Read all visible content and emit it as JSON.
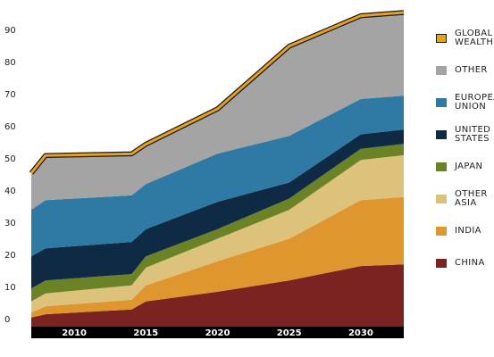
{
  "chart_data": {
    "type": "area",
    "stacked": true,
    "x": [
      2007,
      2008,
      2014,
      2015,
      2020,
      2025,
      2030,
      2033
    ],
    "x_ticks": [
      "2010",
      "2015",
      "2020",
      "2025",
      "2030"
    ],
    "y_ticks": [
      "0",
      "10",
      "20",
      "30",
      "40",
      "50",
      "60",
      "70",
      "80",
      "90"
    ],
    "ylim": [
      -4,
      96
    ],
    "series": [
      {
        "name": "CHINA",
        "color": "#7a2320",
        "values": [
          0.5,
          1.5,
          3,
          5.5,
          8.5,
          12,
          16.5,
          17
        ]
      },
      {
        "name": "INDIA",
        "color": "#e0962e",
        "values": [
          1.5,
          2.5,
          3,
          5,
          9.5,
          13,
          20.5,
          21
        ]
      },
      {
        "name": "OTHER ASIA",
        "color": "#ddc27c",
        "values": [
          3.5,
          4,
          4.5,
          5.5,
          7,
          9,
          12.5,
          13
        ]
      },
      {
        "name": "JAPAN",
        "color": "#6b8326",
        "values": [
          4,
          4,
          3.5,
          3.5,
          3,
          3.5,
          3.5,
          3.5
        ]
      },
      {
        "name": "UNITED STATES",
        "color": "#0f2a44",
        "values": [
          10,
          10,
          10,
          8.5,
          8.5,
          5,
          4.5,
          4.5
        ]
      },
      {
        "name": "EUROPEAN UNION",
        "color": "#2f7aa5",
        "values": [
          14.5,
          15,
          14.5,
          14,
          15,
          14.5,
          11,
          10.5
        ]
      },
      {
        "name": "OTHER",
        "color": "#a4a4a4",
        "values": [
          11,
          13.5,
          12.5,
          12,
          13.5,
          27.5,
          25.5,
          25.5
        ]
      }
    ],
    "total": {
      "name": "GLOBAL WEALTH",
      "color": "#e8a020",
      "outline": "#1a1a1a"
    },
    "legend_order": [
      "GLOBAL WEALTH",
      "OTHER",
      "EUROPEAN UNION",
      "UNITED STATES",
      "JAPAN",
      "OTHER ASIA",
      "INDIA",
      "CHINA"
    ],
    "legend_position": "right",
    "grid": false
  }
}
